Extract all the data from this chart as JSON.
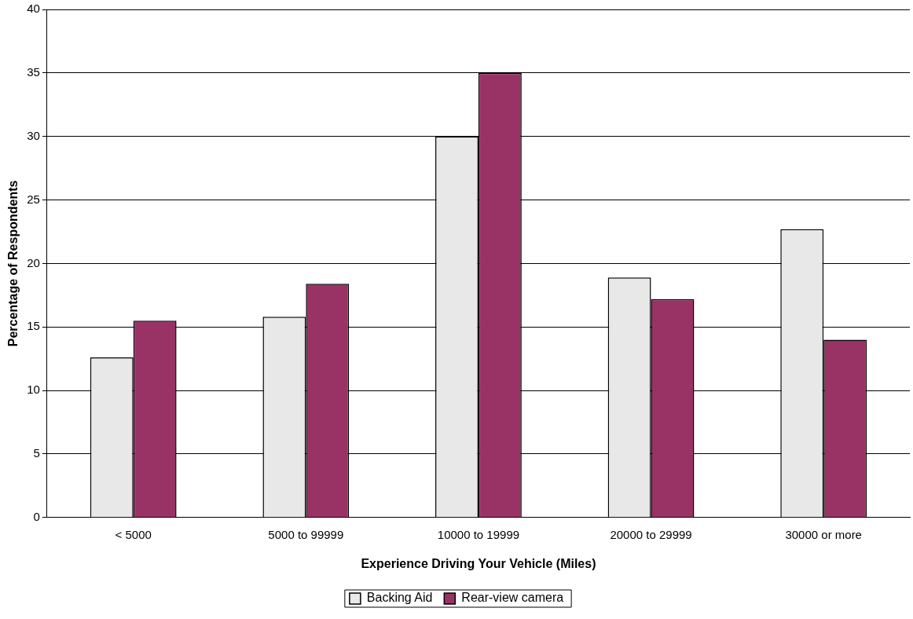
{
  "chart_data": {
    "type": "bar",
    "xlabel": "Experience Driving Your Vehicle (Miles)",
    "ylabel": "Percentage of Respondents",
    "categories": [
      "< 5000",
      "5000 to 99999",
      "10000 to 19999",
      "20000 to 29999",
      "30000 or more"
    ],
    "series": [
      {
        "name": "Backing Aid",
        "color": "#e8e8e8",
        "values": [
          12.6,
          15.8,
          30.0,
          18.9,
          22.7
        ]
      },
      {
        "name": "Rear-view camera",
        "color": "#993366",
        "values": [
          15.5,
          18.4,
          35.0,
          17.2,
          14.0
        ]
      }
    ],
    "ylim": [
      0,
      40
    ],
    "yticks": [
      0,
      5,
      10,
      15,
      20,
      25,
      30,
      35,
      40
    ],
    "grid": "y",
    "legend": "bottom"
  }
}
